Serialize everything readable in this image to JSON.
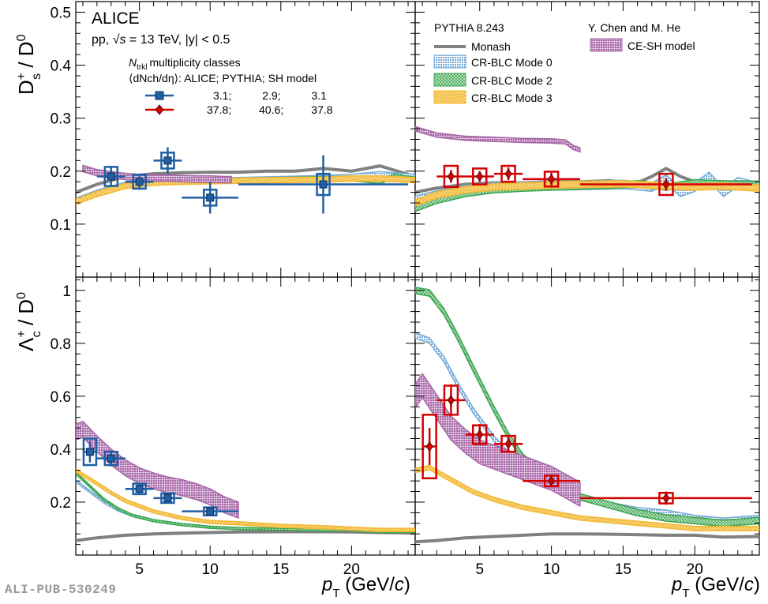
{
  "figure_id": "ALI-PUB-530249",
  "colors": {
    "alice_low": "#1f5fa6",
    "alice_high": "#d40000",
    "monash": "#808080",
    "mode0": "#74a9d8",
    "mode2": "#3aa64e",
    "mode3": "#f2b832",
    "ce_sh": "#a565a5"
  },
  "text": {
    "experiment": "ALICE",
    "system_pp": "pp, ",
    "system_sqrt": "√s",
    "system_rest": " = 13 TeV, |y| < 0.5",
    "ntrkl_head": "multiplicity classes",
    "dndeta_head": "⟨dN",
    "dndeta_tail": "/dη⟩:  ALICE;  PYTHIA;  SH model",
    "row_low": "3.1;          2.9;          3.1",
    "row_high": "37.8;         40.6;         37.8",
    "pythia_version": "PYTHIA 8.243",
    "chen_he": "Y. Chen and M. He",
    "legend_monash": "Monash",
    "legend_mode0": "CR-BLC Mode 0",
    "legend_mode2": "CR-BLC Mode 2",
    "legend_mode3": "CR-BLC Mode 3",
    "legend_cesh": "CE-SH model",
    "ylabel_top": "D+s / D0",
    "ylabel_bottom": "Λ+c / D0",
    "xlabel": "pT (GeV/c)"
  },
  "chart_data": [
    {
      "type": "scatter",
      "panel": "top-left",
      "ylabel": "Ds+ / D0",
      "xlim": [
        0.5,
        24.5
      ],
      "ylim": [
        0,
        0.52
      ],
      "x_ticks": [
        5,
        10,
        15,
        20
      ],
      "y_ticks": [
        0.1,
        0.2,
        0.3,
        0.4,
        0.5
      ],
      "series": [
        {
          "name": "3.1",
          "kind": "data",
          "points": [
            {
              "x": 3.0,
              "y": 0.19,
              "xerr": 1.0,
              "stat": 0.02,
              "syst": 0.018
            },
            {
              "x": 5.0,
              "y": 0.18,
              "xerr": 1.0,
              "stat": 0.015,
              "syst": 0.013
            },
            {
              "x": 7.0,
              "y": 0.22,
              "xerr": 1.0,
              "stat": 0.025,
              "syst": 0.015
            },
            {
              "x": 10.0,
              "y": 0.15,
              "xerr": 2.0,
              "stat": 0.03,
              "syst": 0.015
            },
            {
              "x": 18.0,
              "y": 0.175,
              "xerr": 6.0,
              "stat": 0.055,
              "syst": 0.02
            }
          ]
        },
        {
          "name": "Monash",
          "kind": "line",
          "x": [
            0.5,
            2,
            4,
            6,
            8,
            10,
            12,
            14,
            16,
            18,
            20,
            22,
            24.5
          ],
          "y": [
            0.16,
            0.175,
            0.19,
            0.195,
            0.197,
            0.198,
            0.198,
            0.2,
            0.2,
            0.205,
            0.2,
            0.21,
            0.19
          ]
        },
        {
          "name": "CR-BLC Mode 0",
          "kind": "band",
          "x": [
            0.5,
            2,
            4,
            6,
            8,
            10,
            12,
            15,
            18,
            20,
            22,
            24.5
          ],
          "y": [
            0.145,
            0.16,
            0.175,
            0.18,
            0.182,
            0.183,
            0.184,
            0.186,
            0.188,
            0.19,
            0.195,
            0.19
          ],
          "w": 0.004
        },
        {
          "name": "CR-BLC Mode 2",
          "kind": "band",
          "x": [
            0.5,
            2,
            4,
            6,
            8,
            10,
            12,
            15,
            18,
            20,
            22,
            23,
            24.5
          ],
          "y": [
            0.143,
            0.158,
            0.172,
            0.178,
            0.18,
            0.181,
            0.182,
            0.184,
            0.186,
            0.186,
            0.18,
            0.19,
            0.185
          ],
          "w": 0.004
        },
        {
          "name": "CR-BLC Mode 3",
          "kind": "band",
          "x": [
            0.5,
            2,
            4,
            6,
            8,
            10,
            12,
            15,
            18,
            20,
            22,
            24.5
          ],
          "y": [
            0.142,
            0.157,
            0.172,
            0.178,
            0.18,
            0.181,
            0.182,
            0.183,
            0.184,
            0.186,
            0.186,
            0.183
          ],
          "w": 0.005
        },
        {
          "name": "CE-SH model",
          "kind": "band",
          "x": [
            1,
            2,
            3,
            4,
            5,
            6,
            7,
            8,
            9,
            10,
            11,
            11.5
          ],
          "y": [
            0.205,
            0.197,
            0.193,
            0.19,
            0.188,
            0.187,
            0.187,
            0.186,
            0.185,
            0.185,
            0.184,
            0.184
          ],
          "w": 0.006
        }
      ]
    },
    {
      "type": "scatter",
      "panel": "top-right",
      "xlim": [
        0.5,
        24.5
      ],
      "ylim": [
        0,
        0.52
      ],
      "x_ticks": [
        5,
        10,
        15,
        20
      ],
      "series": [
        {
          "name": "37.8",
          "kind": "data",
          "points": [
            {
              "x": 3.0,
              "y": 0.19,
              "xerr": 1.0,
              "stat": 0.012,
              "syst": 0.02
            },
            {
              "x": 5.0,
              "y": 0.19,
              "xerr": 1.0,
              "stat": 0.01,
              "syst": 0.015
            },
            {
              "x": 7.0,
              "y": 0.195,
              "xerr": 1.0,
              "stat": 0.012,
              "syst": 0.015
            },
            {
              "x": 10.0,
              "y": 0.185,
              "xerr": 2.0,
              "stat": 0.012,
              "syst": 0.014
            },
            {
              "x": 18.0,
              "y": 0.175,
              "xerr": 6.0,
              "stat": 0.012,
              "syst": 0.02
            }
          ]
        },
        {
          "name": "Monash",
          "kind": "line",
          "x": [
            0.5,
            2,
            4,
            6,
            8,
            10,
            12,
            14,
            16,
            17,
            18,
            19,
            20,
            22,
            24.5
          ],
          "y": [
            0.16,
            0.168,
            0.175,
            0.178,
            0.178,
            0.18,
            0.18,
            0.182,
            0.178,
            0.19,
            0.205,
            0.19,
            0.18,
            0.175,
            0.17
          ]
        },
        {
          "name": "CR-BLC Mode 0",
          "kind": "band",
          "x": [
            0.5,
            2,
            4,
            6,
            8,
            10,
            12,
            15,
            17,
            18,
            19,
            20,
            21,
            22,
            23,
            24.5
          ],
          "y": [
            0.145,
            0.155,
            0.165,
            0.17,
            0.172,
            0.172,
            0.173,
            0.175,
            0.17,
            0.185,
            0.16,
            0.17,
            0.19,
            0.16,
            0.18,
            0.17
          ],
          "w": 0.008
        },
        {
          "name": "CR-BLC Mode 2",
          "kind": "band",
          "x": [
            0.5,
            2,
            4,
            6,
            8,
            10,
            12,
            14,
            16,
            18,
            20,
            22,
            24.5
          ],
          "y": [
            0.13,
            0.145,
            0.158,
            0.165,
            0.168,
            0.17,
            0.172,
            0.173,
            0.176,
            0.17,
            0.178,
            0.176,
            0.175
          ],
          "w": 0.006
        },
        {
          "name": "CR-BLC Mode 3",
          "kind": "band",
          "x": [
            0.5,
            2,
            4,
            6,
            8,
            10,
            12,
            15,
            18,
            20,
            22,
            24.5
          ],
          "y": [
            0.14,
            0.155,
            0.165,
            0.17,
            0.172,
            0.174,
            0.175,
            0.176,
            0.172,
            0.17,
            0.172,
            0.168
          ],
          "w": 0.006
        },
        {
          "name": "CE-SH model",
          "kind": "band",
          "x": [
            0.5,
            2,
            4,
            6,
            8,
            10,
            11,
            11.5,
            12
          ],
          "y": [
            0.28,
            0.268,
            0.262,
            0.26,
            0.258,
            0.257,
            0.255,
            0.245,
            0.24
          ],
          "w": 0.004
        }
      ]
    },
    {
      "type": "scatter",
      "panel": "bottom-left",
      "ylabel": "Λc+ / D0",
      "xlabel": "pT (GeV/c)",
      "xlim": [
        0.5,
        24.5
      ],
      "ylim": [
        0,
        1.05
      ],
      "x_ticks": [
        5,
        10,
        15,
        20
      ],
      "y_ticks": [
        0.2,
        0.4,
        0.6,
        0.8,
        1
      ],
      "series": [
        {
          "name": "3.1",
          "kind": "data",
          "points": [
            {
              "x": 1.5,
              "y": 0.39,
              "xerr": 0.5,
              "stat": 0.04,
              "syst": 0.05
            },
            {
              "x": 3.0,
              "y": 0.365,
              "xerr": 1.0,
              "stat": 0.03,
              "syst": 0.025
            },
            {
              "x": 5.0,
              "y": 0.25,
              "xerr": 1.0,
              "stat": 0.02,
              "syst": 0.02
            },
            {
              "x": 7.0,
              "y": 0.215,
              "xerr": 1.0,
              "stat": 0.015,
              "syst": 0.018
            },
            {
              "x": 10.0,
              "y": 0.165,
              "xerr": 2.0,
              "stat": 0.012,
              "syst": 0.015
            }
          ]
        },
        {
          "name": "Monash",
          "kind": "line",
          "x": [
            0.5,
            2,
            4,
            6,
            8,
            10,
            12,
            15,
            18,
            20,
            22,
            24.5
          ],
          "y": [
            0.055,
            0.065,
            0.075,
            0.08,
            0.083,
            0.085,
            0.087,
            0.088,
            0.088,
            0.087,
            0.085,
            0.083
          ]
        },
        {
          "name": "CR-BLC Mode 0",
          "kind": "band",
          "x": [
            0.5,
            1.5,
            2.5,
            3.5,
            4.5,
            6,
            8,
            10,
            12,
            15,
            18,
            20,
            22,
            24.5
          ],
          "y": [
            0.28,
            0.24,
            0.2,
            0.17,
            0.15,
            0.13,
            0.115,
            0.105,
            0.1,
            0.098,
            0.095,
            0.095,
            0.09,
            0.092
          ],
          "w": 0.004
        },
        {
          "name": "CR-BLC Mode 2",
          "kind": "band",
          "x": [
            0.5,
            1.5,
            2.5,
            3.5,
            4.5,
            6,
            8,
            10,
            12,
            15,
            18,
            20,
            22,
            24.5
          ],
          "y": [
            0.31,
            0.26,
            0.21,
            0.175,
            0.15,
            0.13,
            0.115,
            0.105,
            0.1,
            0.097,
            0.095,
            0.095,
            0.088,
            0.09
          ],
          "w": 0.004
        },
        {
          "name": "CR-BLC Mode 3",
          "kind": "band",
          "x": [
            0.5,
            2,
            3,
            4,
            5,
            6,
            8,
            10,
            12,
            15,
            18,
            20,
            22,
            24.5
          ],
          "y": [
            0.32,
            0.27,
            0.235,
            0.205,
            0.185,
            0.165,
            0.14,
            0.125,
            0.12,
            0.11,
            0.105,
            0.1,
            0.095,
            0.095
          ],
          "w": 0.006
        },
        {
          "name": "CE-SH model",
          "kind": "band",
          "x": [
            0.5,
            1,
            2,
            3,
            4,
            5,
            6,
            7,
            8,
            9,
            10,
            11,
            12
          ],
          "y": [
            0.465,
            0.475,
            0.42,
            0.37,
            0.33,
            0.3,
            0.28,
            0.265,
            0.255,
            0.24,
            0.22,
            0.19,
            0.17
          ],
          "w": 0.03
        }
      ]
    },
    {
      "type": "scatter",
      "panel": "bottom-right",
      "xlabel": "pT (GeV/c)",
      "xlim": [
        0.5,
        24.5
      ],
      "ylim": [
        0,
        1.05
      ],
      "x_ticks": [
        5,
        10,
        15,
        20
      ],
      "series": [
        {
          "name": "37.8",
          "kind": "data",
          "points": [
            {
              "x": 1.5,
              "y": 0.41,
              "xerr": 0.5,
              "stat": 0.07,
              "syst": 0.12
            },
            {
              "x": 3.0,
              "y": 0.585,
              "xerr": 1.0,
              "stat": 0.06,
              "syst": 0.055
            },
            {
              "x": 5.0,
              "y": 0.455,
              "xerr": 1.0,
              "stat": 0.04,
              "syst": 0.035
            },
            {
              "x": 7.0,
              "y": 0.42,
              "xerr": 1.0,
              "stat": 0.03,
              "syst": 0.03
            },
            {
              "x": 10.0,
              "y": 0.28,
              "xerr": 2.0,
              "stat": 0.02,
              "syst": 0.02
            },
            {
              "x": 18.0,
              "y": 0.215,
              "xerr": 6.0,
              "stat": 0.025,
              "syst": 0.02
            }
          ]
        },
        {
          "name": "Monash",
          "kind": "line",
          "x": [
            0.5,
            2,
            4,
            6,
            8,
            10,
            12,
            15,
            18,
            20,
            22,
            24.5
          ],
          "y": [
            0.05,
            0.055,
            0.065,
            0.07,
            0.075,
            0.08,
            0.08,
            0.078,
            0.075,
            0.075,
            0.068,
            0.07
          ]
        },
        {
          "name": "CR-BLC Mode 0",
          "kind": "band",
          "x": [
            0.5,
            1.5,
            2.5,
            3.5,
            4.5,
            6,
            7,
            8,
            10,
            12,
            14,
            16,
            18,
            20,
            22,
            24.5
          ],
          "y": [
            0.83,
            0.81,
            0.74,
            0.64,
            0.55,
            0.44,
            0.38,
            0.33,
            0.27,
            0.22,
            0.19,
            0.17,
            0.16,
            0.14,
            0.13,
            0.14
          ],
          "w": 0.01
        },
        {
          "name": "CR-BLC Mode 2",
          "kind": "band",
          "x": [
            0.5,
            1.5,
            2.5,
            3.5,
            4.5,
            6,
            7,
            8,
            10,
            12,
            14,
            16,
            18,
            20,
            22,
            24.5
          ],
          "y": [
            1.0,
            0.99,
            0.92,
            0.82,
            0.71,
            0.55,
            0.45,
            0.37,
            0.28,
            0.22,
            0.19,
            0.16,
            0.14,
            0.13,
            0.12,
            0.13
          ],
          "w": 0.012
        },
        {
          "name": "CR-BLC Mode 3",
          "kind": "band",
          "x": [
            0.5,
            1.5,
            2.5,
            3.5,
            4.5,
            6,
            8,
            10,
            12,
            14,
            16,
            18,
            20,
            22,
            24.5
          ],
          "y": [
            0.32,
            0.33,
            0.3,
            0.27,
            0.24,
            0.21,
            0.18,
            0.16,
            0.14,
            0.13,
            0.12,
            0.11,
            0.1,
            0.1,
            0.1
          ],
          "w": 0.008
        },
        {
          "name": "CE-SH model",
          "kind": "band",
          "x": [
            0.5,
            1,
            2,
            3,
            4,
            5,
            6,
            7,
            8,
            9,
            10,
            11,
            12
          ],
          "y": [
            0.6,
            0.64,
            0.56,
            0.48,
            0.43,
            0.39,
            0.37,
            0.35,
            0.33,
            0.31,
            0.29,
            0.26,
            0.23
          ],
          "w": 0.045
        }
      ]
    }
  ]
}
